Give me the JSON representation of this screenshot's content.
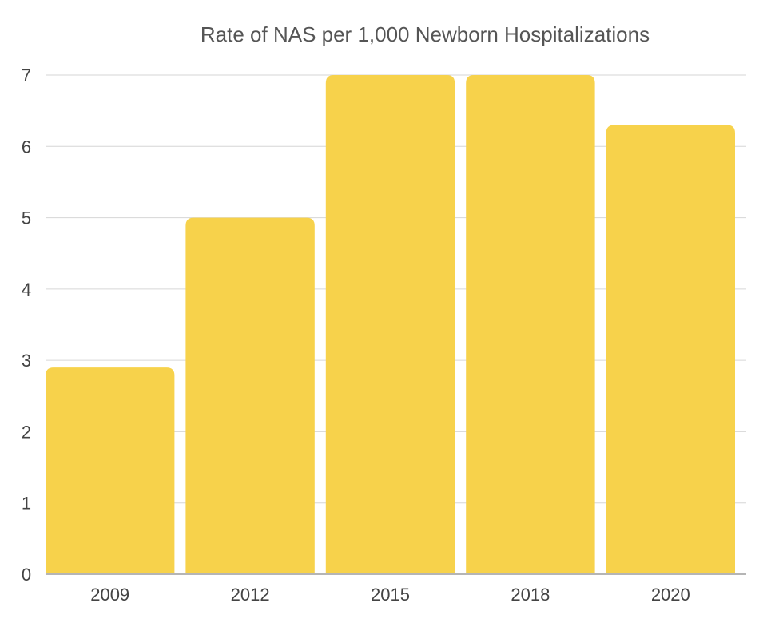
{
  "chart_data": {
    "type": "bar",
    "title": "Rate of NAS per 1,000 Newborn Hospitalizations",
    "categories": [
      "2009",
      "2012",
      "2015",
      "2018",
      "2020"
    ],
    "values": [
      2.9,
      5.0,
      7.0,
      7.0,
      6.3
    ],
    "xlabel": "",
    "ylabel": "",
    "ylim": [
      0,
      7
    ],
    "yticks": [
      0,
      1,
      2,
      3,
      4,
      5,
      6,
      7
    ],
    "grid": true,
    "legend": "none",
    "bar_color": "#F7D24B"
  }
}
